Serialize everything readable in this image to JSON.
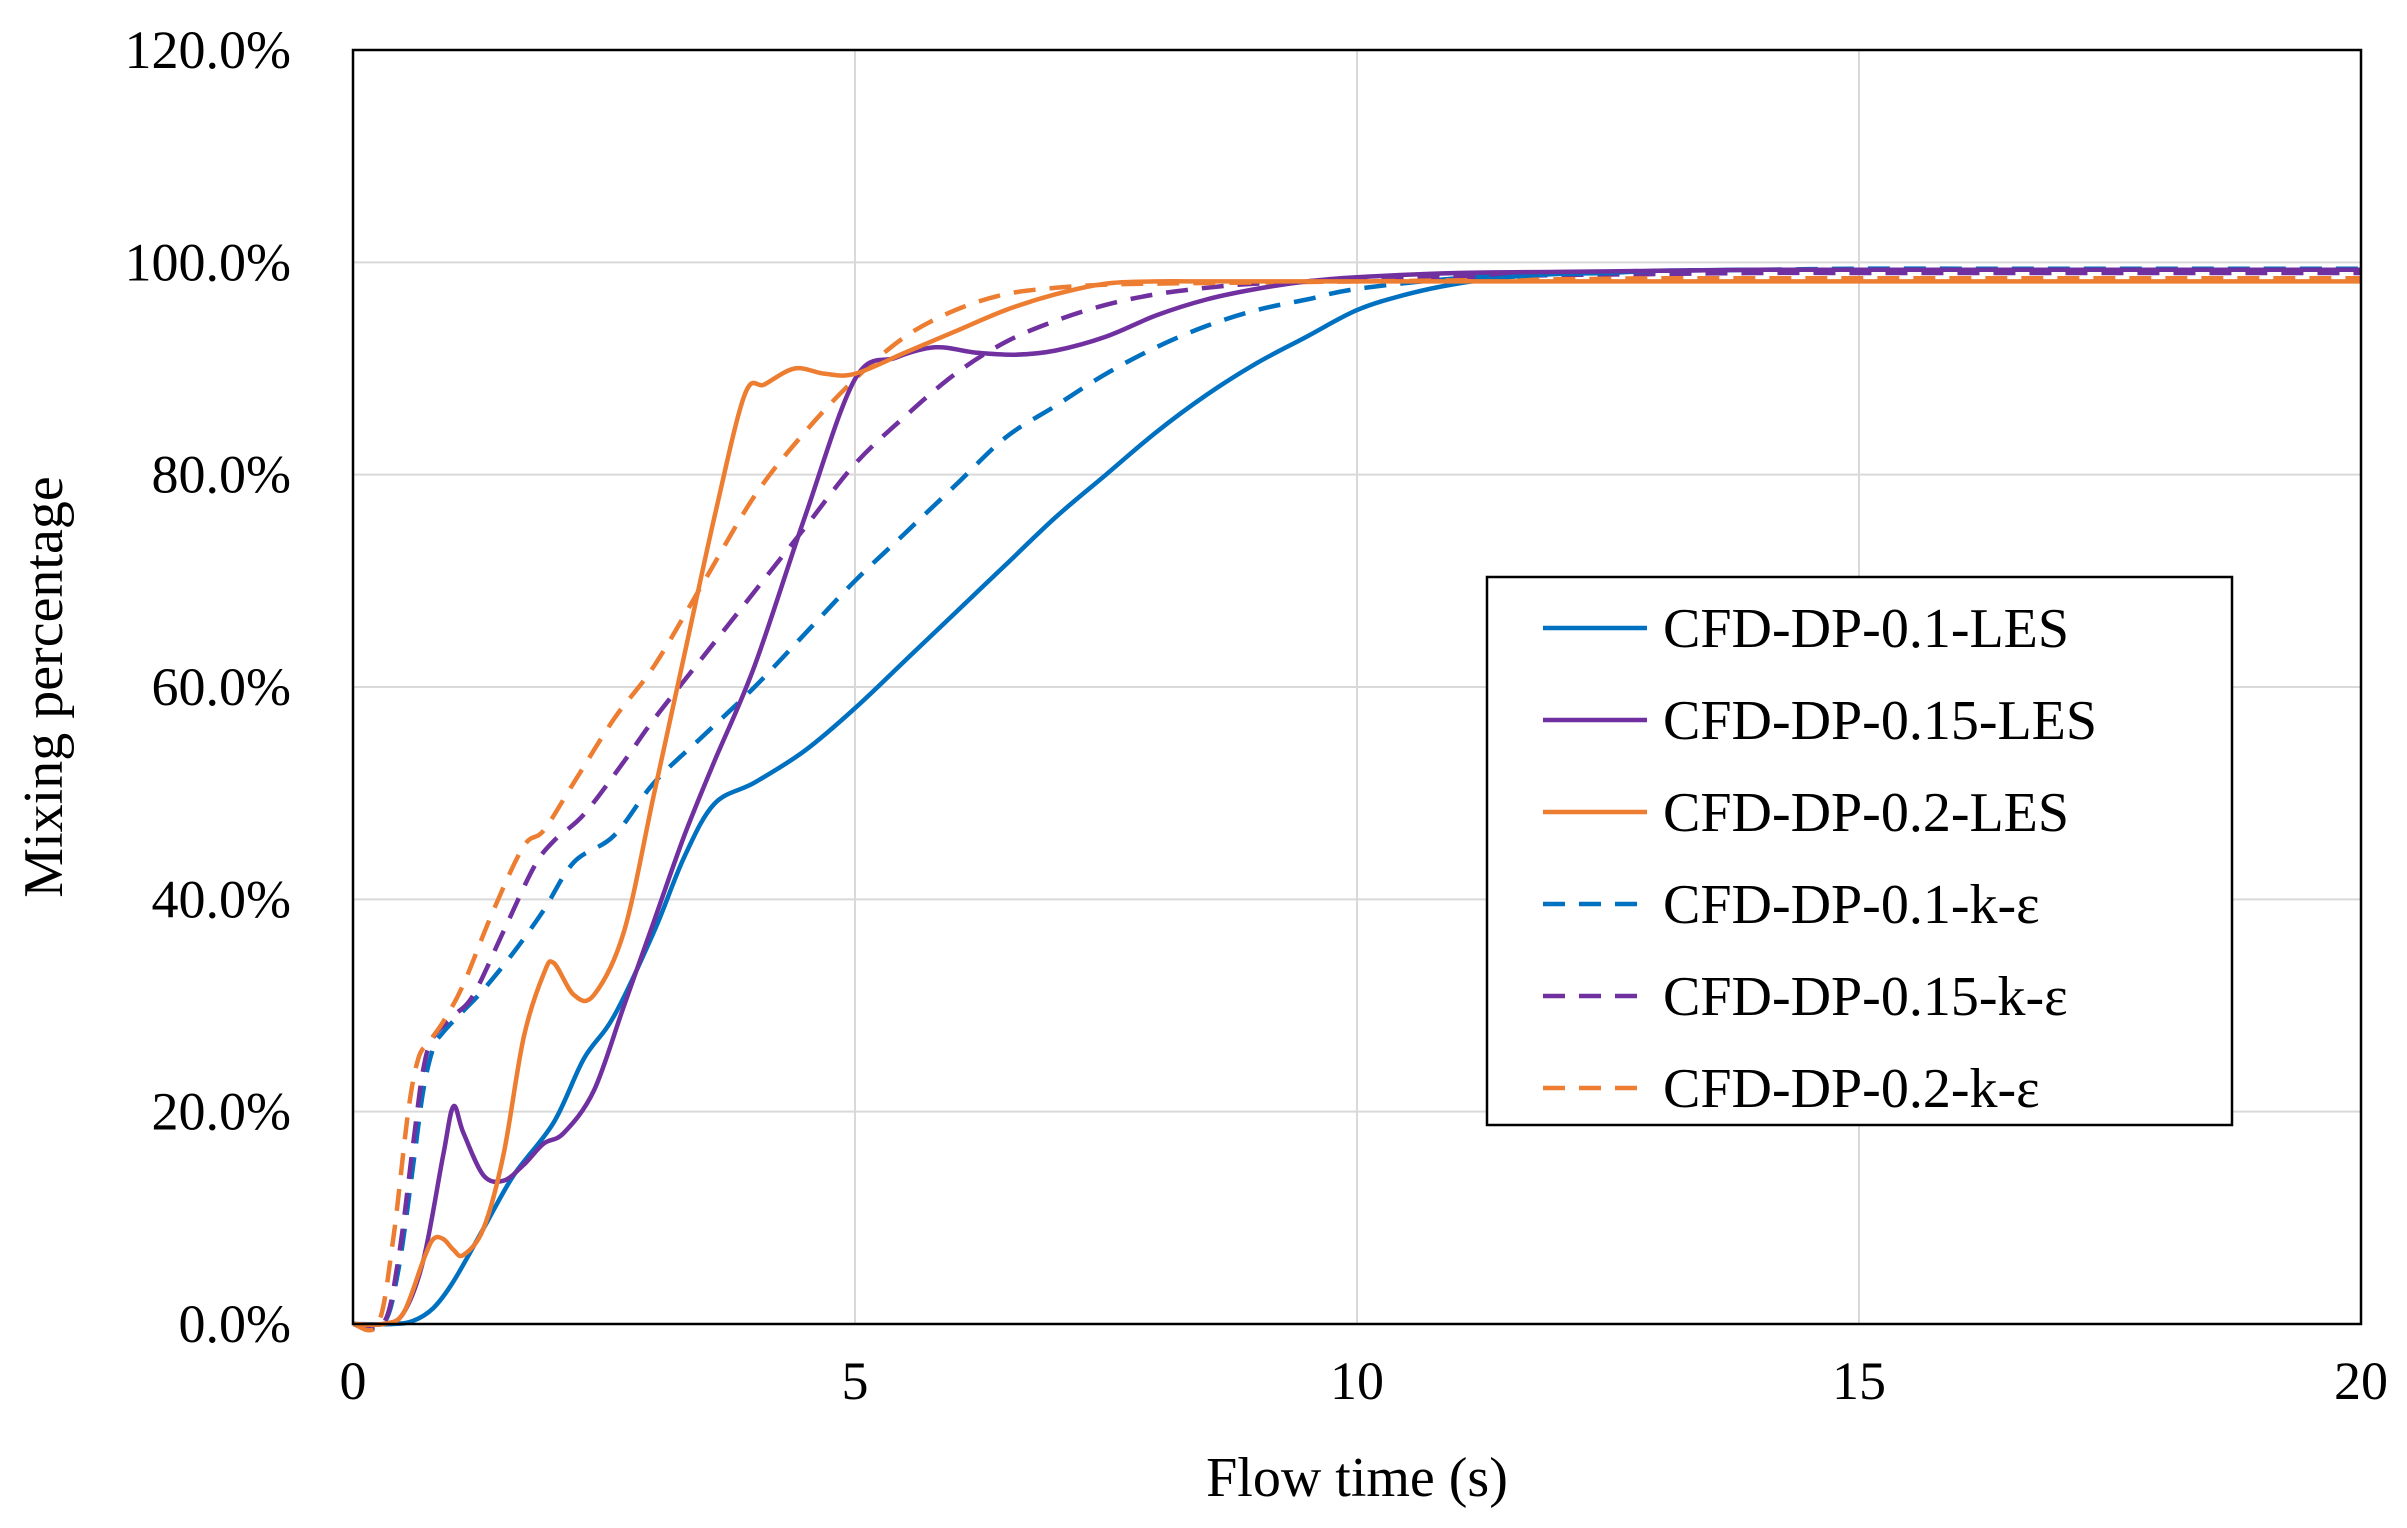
{
  "chart_data": {
    "type": "line",
    "title": "",
    "xlabel": "Flow time (s)",
    "ylabel": "Mixing percentage",
    "xlim": [
      0,
      20
    ],
    "ylim": [
      0,
      120
    ],
    "x_ticks": [
      0,
      5,
      10,
      15,
      20
    ],
    "x_tick_labels": [
      "0",
      "5",
      "10",
      "15",
      "20"
    ],
    "y_ticks": [
      0,
      20,
      40,
      60,
      80,
      100,
      120
    ],
    "y_tick_labels": [
      "0.0%",
      "20.0%",
      "40.0%",
      "60.0%",
      "80.0%",
      "100.0%",
      "120.0%"
    ],
    "grid": true,
    "legend_position": "right-middle",
    "series": [
      {
        "name": "CFD-DP-0.1-LES",
        "color": "#0070c0",
        "dash": "solid",
        "x": [
          0,
          0.4,
          0.6,
          0.8,
          1.0,
          1.3,
          1.6,
          2.0,
          2.3,
          2.6,
          3.0,
          3.3,
          3.6,
          4.0,
          4.5,
          5.0,
          5.5,
          6.0,
          6.5,
          7.0,
          7.5,
          8.0,
          8.5,
          9.0,
          9.5,
          10.0,
          10.5,
          11.0,
          11.5,
          12.0,
          12.5,
          13.0,
          14.0,
          15.0,
          16.0,
          17.0,
          18.0,
          19.0,
          20.0
        ],
        "y": [
          0,
          0,
          0.3,
          1.5,
          4,
          9,
          14,
          19,
          25,
          29,
          37,
          44,
          49,
          51,
          54,
          58,
          62.5,
          67,
          71.5,
          76,
          80,
          84,
          87.5,
          90.5,
          93,
          95.5,
          97,
          98,
          98.6,
          98.9,
          99,
          99.2,
          99.3,
          99.3,
          99.3,
          99.3,
          99.3,
          99.3,
          99.3
        ]
      },
      {
        "name": "CFD-DP-0.15-LES",
        "color": "#7030a0",
        "dash": "solid",
        "x": [
          0,
          0.3,
          0.5,
          0.7,
          0.9,
          1.0,
          1.1,
          1.3,
          1.5,
          1.7,
          1.9,
          2.1,
          2.4,
          2.7,
          3.0,
          3.3,
          3.6,
          4.0,
          4.5,
          5.0,
          5.4,
          5.8,
          6.2,
          6.6,
          7.0,
          7.5,
          8.0,
          8.5,
          9.0,
          9.5,
          10.0,
          11.0,
          12.0,
          13.0,
          14.0,
          15.0,
          16.0,
          17.0,
          18.0,
          19.0,
          20.0
        ],
        "y": [
          0,
          0,
          1,
          6,
          16,
          20.5,
          18,
          14,
          13.5,
          15,
          17,
          18,
          22,
          30,
          38,
          46,
          53,
          62,
          76,
          89,
          91,
          92,
          91.5,
          91.3,
          91.7,
          93,
          95,
          96.5,
          97.5,
          98.2,
          98.6,
          99,
          99.1,
          99.2,
          99.3,
          99.3,
          99.3,
          99.3,
          99.3,
          99.3,
          99.3
        ]
      },
      {
        "name": "CFD-DP-0.2-LES",
        "color": "#ed7d31",
        "dash": "solid",
        "x": [
          0,
          0.3,
          0.5,
          0.7,
          0.8,
          0.9,
          1.0,
          1.1,
          1.3,
          1.5,
          1.7,
          1.9,
          2.0,
          2.2,
          2.4,
          2.7,
          3.0,
          3.3,
          3.6,
          3.9,
          4.1,
          4.4,
          4.7,
          5.0,
          5.5,
          6.0,
          6.5,
          7.0,
          7.5,
          8.0,
          8.5,
          9.0,
          10.0,
          11.0,
          12.0,
          13.0,
          14.0,
          15.0,
          16.0,
          17.0,
          18.0,
          19.0,
          20.0
        ],
        "y": [
          0,
          0,
          1,
          6,
          8,
          8,
          7,
          6.5,
          9,
          16,
          27,
          33,
          34,
          31,
          31,
          37,
          50,
          63,
          76,
          87.5,
          88.5,
          90,
          89.5,
          89.5,
          91.5,
          93.5,
          95.5,
          97,
          98,
          98.2,
          98.2,
          98.2,
          98.2,
          98.2,
          98.2,
          98.2,
          98.2,
          98.2,
          98.2,
          98.2,
          98.2,
          98.2,
          98.2
        ]
      },
      {
        "name": "CFD-DP-0.1-k-ε",
        "color": "#0070c0",
        "dash": "dashed",
        "x": [
          0,
          0.3,
          0.45,
          0.6,
          0.7,
          0.8,
          0.9,
          1.1,
          1.3,
          1.6,
          1.9,
          2.2,
          2.6,
          3.0,
          3.5,
          4.0,
          4.5,
          5.0,
          5.5,
          6.0,
          6.5,
          7.0,
          7.5,
          8.0,
          8.5,
          9.0,
          9.5,
          10.0,
          11.0,
          12.0,
          13.0,
          14.0,
          15.0,
          16.0,
          17.0,
          18.0,
          19.0,
          20.0
        ],
        "y": [
          0,
          0,
          5,
          15,
          22,
          26,
          27.5,
          29.5,
          31.5,
          35,
          39,
          43.5,
          46,
          51,
          55.5,
          60,
          65,
          70,
          74.5,
          79,
          83.5,
          86.5,
          89.5,
          92,
          94,
          95.5,
          96.5,
          97.5,
          98.5,
          99,
          99.2,
          99.3,
          99.4,
          99.4,
          99.4,
          99.4,
          99.4,
          99.4
        ]
      },
      {
        "name": "CFD-DP-0.15-k-ε",
        "color": "#7030a0",
        "dash": "dashed",
        "x": [
          0,
          0.3,
          0.45,
          0.6,
          0.7,
          0.8,
          1.0,
          1.2,
          1.5,
          1.8,
          2.0,
          2.3,
          2.7,
          3.0,
          3.5,
          4.0,
          4.5,
          5.0,
          5.5,
          6.0,
          6.5,
          7.0,
          7.5,
          8.0,
          8.5,
          9.0,
          10.0,
          11.0,
          12.0,
          13.0,
          14.0,
          15.0,
          16.0,
          17.0,
          18.0,
          19.0,
          20.0
        ],
        "y": [
          0,
          0,
          6,
          17,
          24,
          27,
          29,
          31,
          37,
          43,
          45.5,
          48,
          53,
          57,
          63,
          69,
          75,
          81,
          85.5,
          89.5,
          92.5,
          94.5,
          96,
          97,
          97.6,
          98,
          98.4,
          98.6,
          98.8,
          98.9,
          99,
          99,
          99,
          99,
          99,
          99,
          99
        ]
      },
      {
        "name": "CFD-DP-0.2-k-ε",
        "color": "#ed7d31",
        "dash": "dashed",
        "x": [
          0,
          0.25,
          0.4,
          0.55,
          0.65,
          0.75,
          0.9,
          1.1,
          1.4,
          1.7,
          1.9,
          2.2,
          2.6,
          3.0,
          3.5,
          4.0,
          4.5,
          5.0,
          5.5,
          6.0,
          6.5,
          7.0,
          7.5,
          8.0,
          9.0,
          10.0,
          11.0,
          12.0,
          13.0,
          14.0,
          15.0,
          16.0,
          17.0,
          18.0,
          19.0,
          20.0
        ],
        "y": [
          0,
          0,
          8,
          20,
          25,
          26.5,
          28.5,
          32,
          39,
          45,
          46.5,
          51,
          57,
          62,
          70,
          78,
          84,
          89,
          93,
          95.5,
          97,
          97.6,
          97.9,
          98,
          98.1,
          98.2,
          98.3,
          98.4,
          98.5,
          98.5,
          98.5,
          98.5,
          98.5,
          98.5,
          98.5,
          98.5
        ]
      }
    ]
  }
}
